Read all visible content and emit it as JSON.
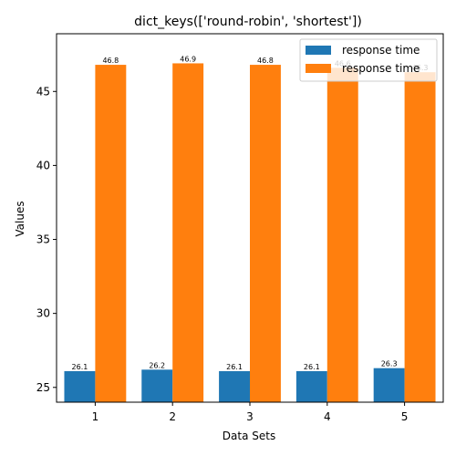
{
  "chart_data": {
    "type": "bar",
    "title": "dict_keys(['round-robin', 'shortest'])",
    "xlabel": "Data Sets",
    "ylabel": "Values",
    "categories": [
      "1",
      "2",
      "3",
      "4",
      "5"
    ],
    "ylim": [
      24.0,
      48.9
    ],
    "yticks": [
      25,
      30,
      35,
      40,
      45
    ],
    "grid": false,
    "legend_position": "top-right",
    "series": [
      {
        "name": "response time",
        "color": "#1f77b4",
        "values": [
          26.1,
          26.2,
          26.1,
          26.1,
          26.3
        ],
        "labels": [
          "26.1",
          "26.2",
          "26.1",
          "26.1",
          "26.3"
        ]
      },
      {
        "name": "response time",
        "color": "#ff7f0e",
        "values": [
          46.8,
          46.9,
          46.8,
          46.6,
          46.3
        ],
        "labels": [
          "46.8",
          "46.9",
          "46.8",
          "46.6",
          "46.3"
        ]
      }
    ]
  }
}
